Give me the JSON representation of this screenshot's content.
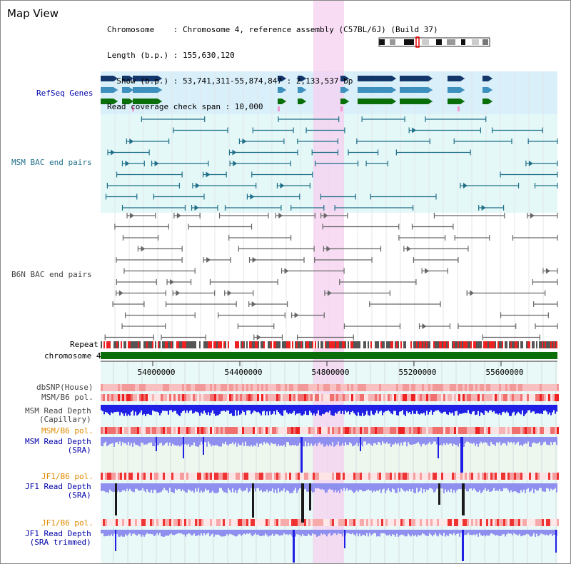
{
  "title": "Map View",
  "info": {
    "chromosome_line": "Chromosome    : Chromosome 4, reference assembly (C57BL/6J) (Build 37)",
    "length_line": "Length (b.p.) : 155,630,120",
    "show_line": "  Show (b.p.) : 53,741,311-55,874,847 : 2,133,537 bp",
    "coverage_line": "Read coverage check span : 10,000"
  },
  "tracks": {
    "refseq": "RefSeq Genes",
    "msm_bac": "MSM BAC end pairs",
    "b6n_bac": "B6N BAC end pairs",
    "repeat": "Repeat",
    "chromosome": "chromosome 4",
    "dbsnp": "dbSNP(House)",
    "msm_b6_pol_1": "MSM/B6 pol.",
    "msm_depth_cap": "MSM Read Depth\n(Capillary)",
    "msm_b6_pol_2": "MSM/B6 pol.",
    "msm_depth_sra": "MSM Read Depth\n(SRA)",
    "jf1_b6_pol_1": "JF1/B6 pol.",
    "jf1_depth_sra": "JF1 Read Depth\n(SRA)",
    "jf1_b6_pol_2": "JF1/B6 pol.",
    "jf1_depth_trim": "JF1 Read Depth\n(SRA trimmed)"
  },
  "axis": {
    "ticks": [
      "54000000",
      "54400000",
      "54800000",
      "55200000",
      "55600000"
    ]
  },
  "colors": {
    "dark_navy": "#13366b",
    "refseq_bg": "#d9effa",
    "msm_bg": "#e4f8f8",
    "highlight": "#f5d0f0",
    "gene_green": "#0a6f0a",
    "gene_blue": "#3d8fbd",
    "label_orange": "#e08a00",
    "label_blue": "#0000aa",
    "label_grey": "#444444",
    "depth_blue": "#1f1fe6",
    "depth_light": "#8f8ff0",
    "teal": "#1f6f88"
  }
}
